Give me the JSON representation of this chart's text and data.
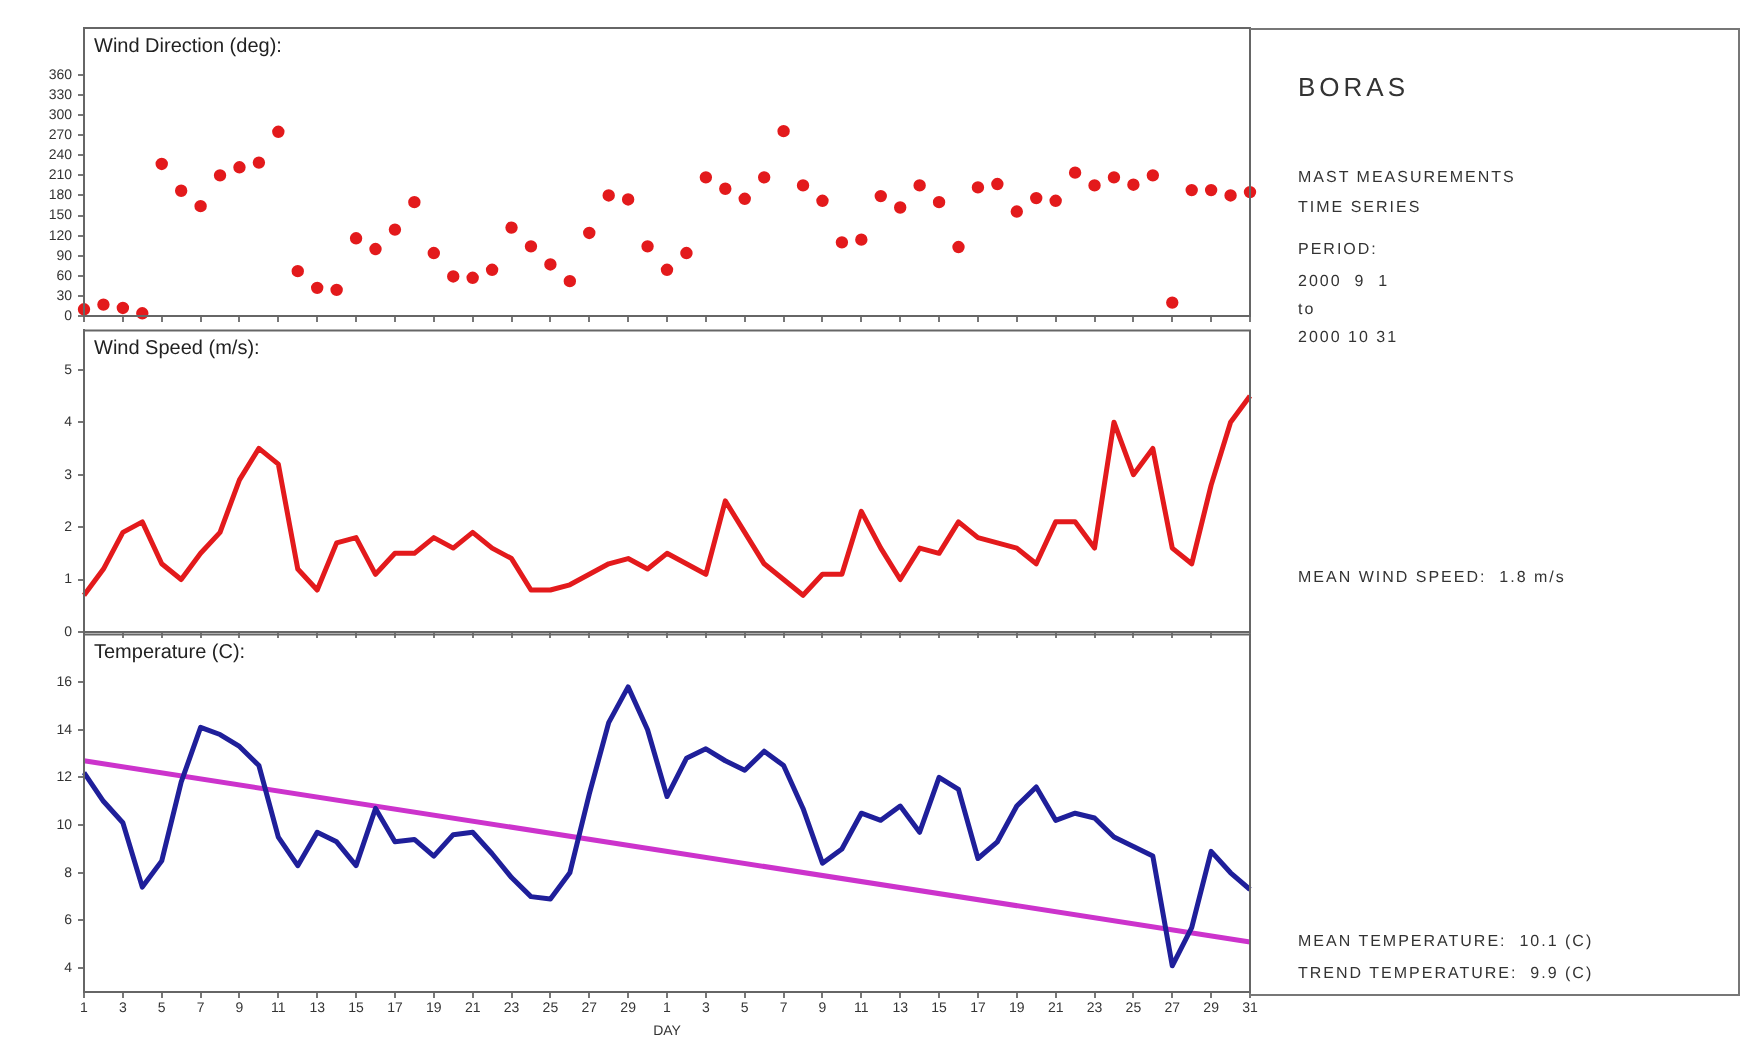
{
  "chart_data": [
    {
      "type": "scatter",
      "title": "Wind Direction (deg):",
      "marker": "circle",
      "color": "#e31a1c",
      "tick_labels": "y",
      "x": [
        "--09-01",
        "--09-02",
        "--09-03",
        "--09-04",
        "--09-05",
        "--09-06",
        "--09-07",
        "--09-08",
        "--09-09",
        "--09-10",
        "--09-11",
        "--09-12",
        "--09-13",
        "--09-14",
        "--09-15",
        "--09-16",
        "--09-17",
        "--09-18",
        "--09-19",
        "--09-20",
        "--09-21",
        "--09-22",
        "--09-23",
        "--09-24",
        "--09-25",
        "--09-26",
        "--09-27",
        "--09-28",
        "--09-29",
        "--09-30",
        "--10-01",
        "--10-02",
        "--10-03",
        "--10-04",
        "--10-05",
        "--10-06",
        "--10-07",
        "--10-08",
        "--10-09",
        "--10-10",
        "--10-11",
        "--10-12",
        "--10-13",
        "--10-14",
        "--10-15",
        "--10-16",
        "--10-17",
        "--10-18",
        "--10-19",
        "--10-20",
        "--10-21",
        "--10-22",
        "--10-23",
        "--10-24",
        "--10-25",
        "--10-26",
        "--10-27",
        "--10-28",
        "--10-29",
        "--10-30",
        "--10-31"
      ],
      "values": [
        10,
        17,
        12,
        4,
        227,
        187,
        164,
        210,
        222,
        229,
        275,
        67,
        42,
        39,
        116,
        100,
        129,
        170,
        94,
        59,
        57,
        69,
        132,
        104,
        77,
        52,
        124,
        180,
        174,
        104,
        69,
        94,
        207,
        190,
        175,
        207,
        276,
        195,
        172,
        110,
        114,
        179,
        162,
        195,
        170,
        103,
        192,
        197,
        156,
        176,
        172,
        214,
        195,
        207,
        196,
        210,
        20,
        188,
        188,
        180,
        185
      ],
      "xlim": [
        "--09-01",
        "--10-31"
      ],
      "ylim": [
        0,
        430
      ],
      "yticks": [
        0,
        30,
        60,
        90,
        120,
        150,
        180,
        210,
        240,
        270,
        300,
        330,
        360
      ],
      "xticks": [
        {
          "value": "--09-01",
          "label": null
        },
        {
          "value": "--09-03",
          "label": null
        },
        {
          "value": "--09-05",
          "label": null
        },
        {
          "value": "--09-07",
          "label": null
        },
        {
          "value": "--09-09",
          "label": null
        },
        {
          "value": "--09-11",
          "label": null
        },
        {
          "value": "--09-13",
          "label": null
        },
        {
          "value": "--09-15",
          "label": null
        },
        {
          "value": "--09-17",
          "label": null
        },
        {
          "value": "--09-19",
          "label": null
        },
        {
          "value": "--09-21",
          "label": null
        },
        {
          "value": "--09-23",
          "label": null
        },
        {
          "value": "--09-25",
          "label": null
        },
        {
          "value": "--09-27",
          "label": null
        },
        {
          "value": "--09-29",
          "label": null
        },
        {
          "value": "--10-01",
          "label": null
        },
        {
          "value": "--10-03",
          "label": null
        },
        {
          "value": "--10-05",
          "label": null
        },
        {
          "value": "--10-07",
          "label": null
        },
        {
          "value": "--10-09",
          "label": null
        },
        {
          "value": "--10-11",
          "label": null
        },
        {
          "value": "--10-13",
          "label": null
        },
        {
          "value": "--10-15",
          "label": null
        },
        {
          "value": "--10-17",
          "label": null
        },
        {
          "value": "--10-19",
          "label": null
        },
        {
          "value": "--10-21",
          "label": null
        },
        {
          "value": "--10-23",
          "label": null
        },
        {
          "value": "--10-25",
          "label": null
        },
        {
          "value": "--10-27",
          "label": null
        },
        {
          "value": "--10-29",
          "label": null
        },
        {
          "value": "--10-31",
          "label": null
        }
      ]
    },
    {
      "type": "line",
      "title": "Wind Speed (m/s):",
      "marker": "none",
      "color": "#e31a1c",
      "tick_labels": "y",
      "x": [
        "--09-01",
        "--09-02",
        "--09-03",
        "--09-04",
        "--09-05",
        "--09-06",
        "--09-07",
        "--09-08",
        "--09-09",
        "--09-10",
        "--09-11",
        "--09-12",
        "--09-13",
        "--09-14",
        "--09-15",
        "--09-16",
        "--09-17",
        "--09-18",
        "--09-19",
        "--09-20",
        "--09-21",
        "--09-22",
        "--09-23",
        "--09-24",
        "--09-25",
        "--09-26",
        "--09-27",
        "--09-28",
        "--09-29",
        "--09-30",
        "--10-01",
        "--10-02",
        "--10-03",
        "--10-04",
        "--10-05",
        "--10-06",
        "--10-07",
        "--10-08",
        "--10-09",
        "--10-10",
        "--10-11",
        "--10-12",
        "--10-13",
        "--10-14",
        "--10-15",
        "--10-16",
        "--10-17",
        "--10-18",
        "--10-19",
        "--10-20",
        "--10-21",
        "--10-22",
        "--10-23",
        "--10-24",
        "--10-25",
        "--10-26",
        "--10-27",
        "--10-28",
        "--10-29",
        "--10-30",
        "--10-31"
      ],
      "values": [
        0.7,
        1.2,
        1.9,
        2.1,
        1.3,
        1.0,
        1.5,
        1.9,
        2.9,
        3.5,
        3.2,
        1.2,
        0.8,
        1.7,
        1.8,
        1.1,
        1.5,
        1.5,
        1.8,
        1.6,
        1.9,
        1.6,
        1.4,
        0.8,
        0.8,
        0.9,
        1.1,
        1.3,
        1.4,
        1.2,
        1.5,
        1.3,
        1.1,
        2.5,
        1.9,
        1.3,
        1.0,
        0.7,
        1.1,
        1.1,
        2.3,
        1.6,
        1.0,
        1.6,
        1.5,
        2.1,
        1.8,
        1.7,
        1.6,
        1.3,
        2.1,
        2.1,
        1.6,
        4.0,
        3.0,
        3.5,
        1.6,
        1.3,
        2.8,
        4.0,
        4.5
      ],
      "xlim": [
        "--09-01",
        "--10-31"
      ],
      "ylim": [
        0,
        5.75
      ],
      "yticks": [
        0,
        1,
        2,
        3,
        4,
        5
      ],
      "xticks": [
        {
          "value": "--09-01",
          "label": null
        },
        {
          "value": "--09-03",
          "label": null
        },
        {
          "value": "--09-05",
          "label": null
        },
        {
          "value": "--09-07",
          "label": null
        },
        {
          "value": "--09-09",
          "label": null
        },
        {
          "value": "--09-11",
          "label": null
        },
        {
          "value": "--09-13",
          "label": null
        },
        {
          "value": "--09-15",
          "label": null
        },
        {
          "value": "--09-17",
          "label": null
        },
        {
          "value": "--09-19",
          "label": null
        },
        {
          "value": "--09-21",
          "label": null
        },
        {
          "value": "--09-23",
          "label": null
        },
        {
          "value": "--09-25",
          "label": null
        },
        {
          "value": "--09-27",
          "label": null
        },
        {
          "value": "--09-29",
          "label": null
        },
        {
          "value": "--10-01",
          "label": null
        },
        {
          "value": "--10-03",
          "label": null
        },
        {
          "value": "--10-05",
          "label": null
        },
        {
          "value": "--10-07",
          "label": null
        },
        {
          "value": "--10-09",
          "label": null
        },
        {
          "value": "--10-11",
          "label": null
        },
        {
          "value": "--10-13",
          "label": null
        },
        {
          "value": "--10-15",
          "label": null
        },
        {
          "value": "--10-17",
          "label": null
        },
        {
          "value": "--10-19",
          "label": null
        },
        {
          "value": "--10-21",
          "label": null
        },
        {
          "value": "--10-23",
          "label": null
        },
        {
          "value": "--10-25",
          "label": null
        },
        {
          "value": "--10-27",
          "label": null
        },
        {
          "value": "--10-29",
          "label": null
        },
        {
          "value": "--10-31",
          "label": null
        }
      ]
    },
    {
      "type": "line",
      "title": "Temperature (C):",
      "marker": "none",
      "xlabel": "DAY",
      "x": [
        "--09-01",
        "--09-02",
        "--09-03",
        "--09-04",
        "--09-05",
        "--09-06",
        "--09-07",
        "--09-08",
        "--09-09",
        "--09-10",
        "--09-11",
        "--09-12",
        "--09-13",
        "--09-14",
        "--09-15",
        "--09-16",
        "--09-17",
        "--09-18",
        "--09-19",
        "--09-20",
        "--09-21",
        "--09-22",
        "--09-23",
        "--09-24",
        "--09-25",
        "--09-26",
        "--09-27",
        "--09-28",
        "--09-29",
        "--09-30",
        "--10-01",
        "--10-02",
        "--10-03",
        "--10-04",
        "--10-05",
        "--10-06",
        "--10-07",
        "--10-08",
        "--10-09",
        "--10-10",
        "--10-11",
        "--10-12",
        "--10-13",
        "--10-14",
        "--10-15",
        "--10-16",
        "--10-17",
        "--10-18",
        "--10-19",
        "--10-20",
        "--10-21",
        "--10-22",
        "--10-23",
        "--10-24",
        "--10-25",
        "--10-26",
        "--10-27",
        "--10-28",
        "--10-29",
        "--10-30",
        "--10-31"
      ],
      "series": [
        {
          "color": "#1f1f9a",
          "values": [
            12.2,
            11.0,
            10.1,
            7.4,
            8.5,
            11.8,
            14.1,
            13.8,
            13.3,
            12.5,
            9.5,
            8.3,
            9.7,
            9.3,
            8.3,
            10.7,
            9.3,
            9.4,
            8.7,
            9.6,
            9.7,
            8.8,
            7.8,
            7.0,
            6.9,
            8.0,
            11.3,
            14.3,
            15.8,
            14.0,
            11.2,
            12.8,
            13.2,
            12.7,
            12.3,
            13.1,
            12.5,
            10.7,
            8.4,
            9.0,
            10.5,
            10.2,
            10.8,
            9.7,
            12.0,
            11.5,
            8.6,
            9.3,
            10.8,
            11.6,
            10.2,
            10.5,
            10.3,
            9.5,
            9.1,
            8.7,
            4.1,
            5.7,
            8.9,
            8.0,
            7.3
          ]
        },
        {
          "type": "line",
          "color": "#cc33cc",
          "x": [
            "--09-01",
            "--10-31"
          ],
          "values": [
            12.7,
            5.1
          ]
        }
      ],
      "xlim": [
        "--09-01",
        "--10-31"
      ],
      "ylim": [
        3,
        18
      ],
      "yticks": [
        4,
        6,
        8,
        10,
        12,
        14,
        16
      ],
      "xticks": [
        {
          "value": "--09-01",
          "label": "1"
        },
        {
          "value": "--09-03",
          "label": "3"
        },
        {
          "value": "--09-05",
          "label": "5"
        },
        {
          "value": "--09-07",
          "label": "7"
        },
        {
          "value": "--09-09",
          "label": "9"
        },
        {
          "value": "--09-11",
          "label": "11"
        },
        {
          "value": "--09-13",
          "label": "13"
        },
        {
          "value": "--09-15",
          "label": "15"
        },
        {
          "value": "--09-17",
          "label": "17"
        },
        {
          "value": "--09-19",
          "label": "19"
        },
        {
          "value": "--09-21",
          "label": "21"
        },
        {
          "value": "--09-23",
          "label": "23"
        },
        {
          "value": "--09-25",
          "label": "25"
        },
        {
          "value": "--09-27",
          "label": "27"
        },
        {
          "value": "--09-29",
          "label": "29"
        },
        {
          "value": "--10-01",
          "label": "1"
        },
        {
          "value": "--10-03",
          "label": "3"
        },
        {
          "value": "--10-05",
          "label": "5"
        },
        {
          "value": "--10-07",
          "label": "7"
        },
        {
          "value": "--10-09",
          "label": "9"
        },
        {
          "value": "--10-11",
          "label": "11"
        },
        {
          "value": "--10-13",
          "label": "13"
        },
        {
          "value": "--10-15",
          "label": "15"
        },
        {
          "value": "--10-17",
          "label": "17"
        },
        {
          "value": "--10-19",
          "label": "19"
        },
        {
          "value": "--10-21",
          "label": "21"
        },
        {
          "value": "--10-23",
          "label": "23"
        },
        {
          "value": "--10-25",
          "label": "25"
        },
        {
          "value": "--10-27",
          "label": "27"
        },
        {
          "value": "--10-29",
          "label": "29"
        },
        {
          "value": "--10-31",
          "label": "31"
        }
      ]
    },
    {
      "type": "other",
      "title": "BORAS",
      "annotations": [
        "MAST MEASUREMENTS",
        "TIME SERIES",
        "PERIOD:",
        "2000  9  1",
        "to",
        "2000 10 31",
        "MEAN WIND SPEED:  1.8 m/s",
        "MEAN TEMPERATURE:  10.1 (C)",
        "TREND TEMPERATURE:  9.9 (C)"
      ]
    }
  ]
}
